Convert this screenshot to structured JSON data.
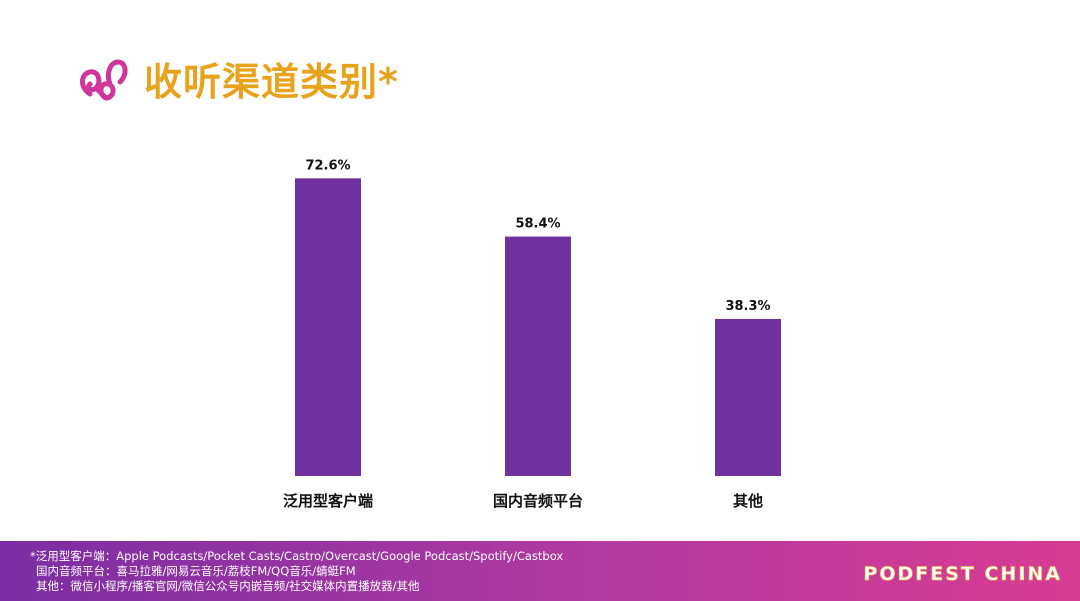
{
  "header": {
    "title": "收听渠道类别*",
    "logo_icon": "brand-logo-icon"
  },
  "colors": {
    "title": "#e8a21c",
    "bar": "#7030a0",
    "logo": "#d0359c",
    "footer_start": "#7b2da3",
    "footer_end": "#d83b93"
  },
  "chart_data": {
    "type": "bar",
    "title": "",
    "xlabel": "",
    "ylabel": "",
    "categories": [
      "泛用型客户端",
      "国内音频平台",
      "其他"
    ],
    "values": [
      72.6,
      58.4,
      38.3
    ],
    "value_labels": [
      "72.6%",
      "58.4%",
      "38.3%"
    ],
    "ylim": [
      0,
      100
    ],
    "grid": false,
    "legend": "none"
  },
  "footer": {
    "notes": [
      "*泛用型客户端：Apple Podcasts/Pocket Casts/Castro/Overcast/Google Podcast/Spotify/Castbox",
      "国内音频平台：喜马拉雅/网易云音乐/荔枝FM/QQ音乐/蜻蜓FM",
      "其他：微信小程序/播客官网/微信公众号内嵌音频/社交媒体内置播放器/其他"
    ],
    "brand": "PODFEST CHINA"
  }
}
